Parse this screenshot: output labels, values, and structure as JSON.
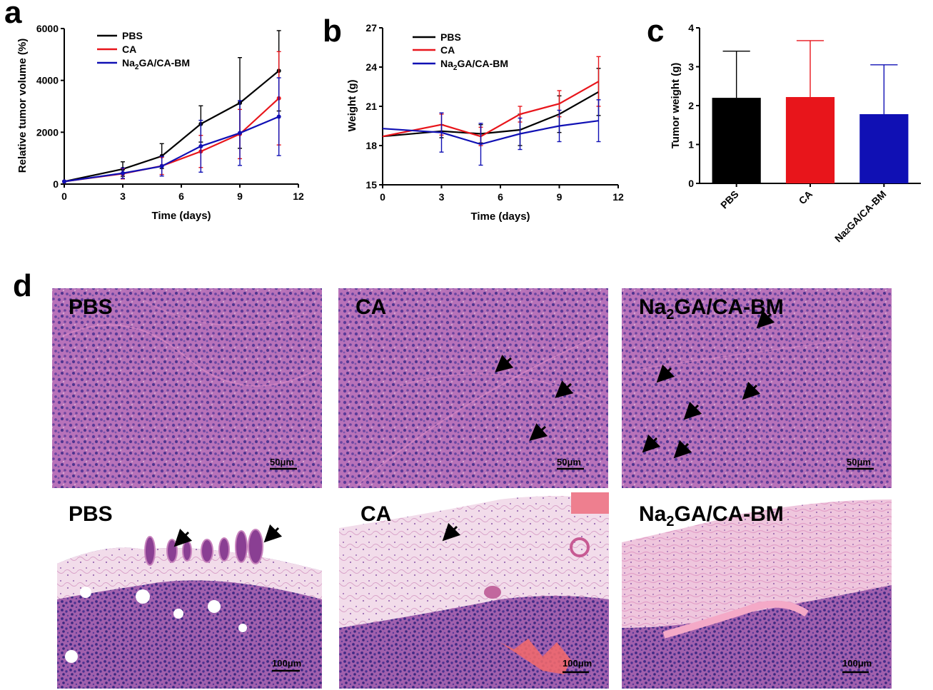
{
  "panel_letters": {
    "a": "a",
    "b": "b",
    "c": "c",
    "d": "d"
  },
  "colors": {
    "PBS": "#000000",
    "CA": "#e8151b",
    "Na2GA/CA-BM": "#1010b4"
  },
  "legend_labels": {
    "PBS": "PBS",
    "CA": "CA",
    "na_prefix": "Na",
    "na_sub": "2",
    "na_suffix": "GA/CA-BM"
  },
  "chart_data": [
    {
      "panel": "a",
      "type": "line",
      "xlabel": "Time (days)",
      "ylabel": "Relative tumor volume (%)",
      "xlim": [
        0,
        12
      ],
      "ylim": [
        0,
        6000
      ],
      "xticks": [
        0,
        3,
        6,
        9,
        12
      ],
      "yticks": [
        0,
        2000,
        4000,
        6000
      ],
      "legend_position": "top-left",
      "x": [
        0,
        3,
        5,
        7,
        9,
        11
      ],
      "series": [
        {
          "name": "PBS",
          "values": [
            100,
            580,
            1080,
            2320,
            3130,
            4370
          ],
          "errors": [
            0,
            280,
            480,
            700,
            1750,
            1550
          ]
        },
        {
          "name": "CA",
          "values": [
            100,
            400,
            700,
            1260,
            1930,
            3310
          ],
          "errors": [
            0,
            200,
            330,
            620,
            950,
            1800
          ]
        },
        {
          "name": "Na2GA/CA-BM",
          "values": [
            100,
            420,
            690,
            1460,
            1970,
            2600
          ],
          "errors": [
            0,
            200,
            380,
            1000,
            1250,
            1500
          ]
        }
      ]
    },
    {
      "panel": "b",
      "type": "line",
      "xlabel": "Time (days)",
      "ylabel": "Weight (g)",
      "xlim": [
        0,
        12
      ],
      "ylim": [
        15,
        27
      ],
      "xticks": [
        0,
        3,
        6,
        9,
        12
      ],
      "yticks": [
        15,
        18,
        21,
        24,
        27
      ],
      "legend_position": "top-left",
      "x": [
        0,
        3,
        5,
        7,
        9,
        11
      ],
      "series": [
        {
          "name": "PBS",
          "values": [
            18.7,
            19.1,
            18.9,
            19.2,
            20.4,
            22.1
          ],
          "errors": [
            0,
            0.5,
            0.7,
            1.2,
            1.4,
            1.8
          ]
        },
        {
          "name": "CA",
          "values": [
            18.7,
            19.6,
            18.7,
            20.4,
            21.2,
            22.9
          ],
          "errors": [
            0,
            0.8,
            0.7,
            0.6,
            1.0,
            1.9
          ]
        },
        {
          "name": "Na2GA/CA-BM",
          "values": [
            19.3,
            19.0,
            18.1,
            18.9,
            19.5,
            19.9
          ],
          "errors": [
            0,
            1.5,
            1.6,
            1.2,
            1.2,
            1.6
          ]
        }
      ]
    },
    {
      "panel": "c",
      "type": "bar",
      "ylabel": "Tumor weight (g)",
      "ylim": [
        0,
        4
      ],
      "yticks": [
        0,
        1,
        2,
        3,
        4
      ],
      "categories": [
        "PBS",
        "CA",
        "Na2GA/CA-BM"
      ],
      "values": [
        2.2,
        2.22,
        1.78
      ],
      "errors": [
        1.2,
        1.45,
        1.27
      ]
    }
  ],
  "histology": {
    "row1": [
      {
        "group": "PBS",
        "scale": "50μm"
      },
      {
        "group": "CA",
        "scale": "50μm"
      },
      {
        "group": "Na2GA/CA-BM",
        "scale": "50μm"
      }
    ],
    "row2": [
      {
        "group": "PBS",
        "scale": "100μm"
      },
      {
        "group": "CA",
        "scale": "100μm"
      },
      {
        "group": "Na2GA/CA-BM",
        "scale": "100μm"
      }
    ]
  }
}
